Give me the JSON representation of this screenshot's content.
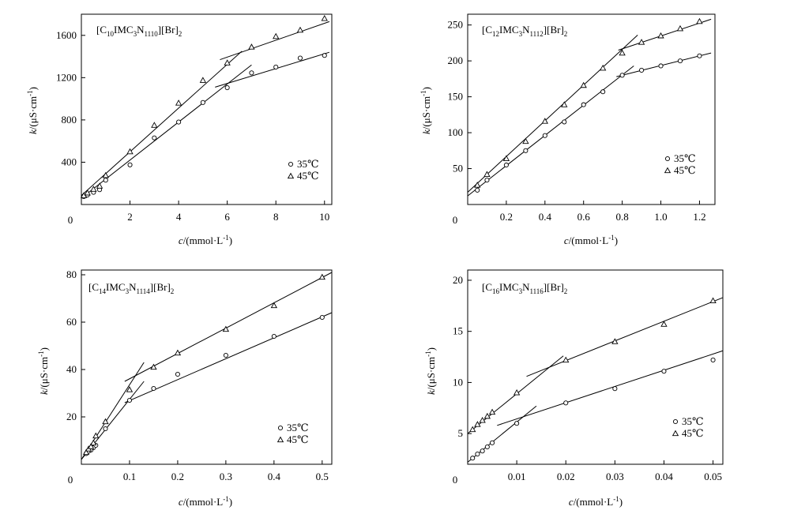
{
  "chart_data": [
    {
      "type": "scatter",
      "title_parts": [
        "[C",
        "10",
        "IMC",
        "3",
        "N",
        "1110",
        "][Br]",
        "2"
      ],
      "xlabel_parts": [
        "c",
        "/(mmol·L",
        "-1",
        ")"
      ],
      "ylabel_parts": [
        "k",
        "/(μS·cm",
        "-1",
        ")"
      ],
      "xlim": [
        0,
        10.3
      ],
      "ylim": [
        0,
        1800
      ],
      "xticks": [
        0,
        2,
        4,
        6,
        8,
        10
      ],
      "xtick_labels": [
        "0",
        "2",
        "4",
        "6",
        "8",
        "10"
      ],
      "yticks": [
        400,
        800,
        1200,
        1600
      ],
      "ytick_labels": [
        "400",
        "800",
        "1200",
        "1600"
      ],
      "legend_position": "bottom-right",
      "series": [
        {
          "name": "35℃",
          "marker": "circle",
          "x": [
            0.1,
            0.25,
            0.5,
            0.75,
            1.0,
            2.0,
            3.0,
            4.0,
            5.0,
            6.0,
            7.0,
            8.0,
            9.0,
            10.0
          ],
          "y": [
            75,
            90,
            115,
            140,
            230,
            375,
            630,
            780,
            965,
            1105,
            1245,
            1300,
            1385,
            1410
          ]
        },
        {
          "name": "45℃",
          "marker": "triangle",
          "x": [
            0.1,
            0.25,
            0.5,
            0.75,
            1.0,
            2.0,
            3.0,
            4.0,
            5.0,
            6.0,
            7.0,
            8.0,
            9.0,
            10.0
          ],
          "y": [
            85,
            110,
            145,
            175,
            275,
            500,
            750,
            960,
            1175,
            1340,
            1490,
            1590,
            1650,
            1760
          ]
        }
      ],
      "fit_lines": [
        {
          "series": "35℃",
          "from": [
            0,
            60
          ],
          "to": [
            7,
            1320
          ]
        },
        {
          "series": "35℃",
          "from": [
            5.5,
            1110
          ],
          "to": [
            10.2,
            1440
          ]
        },
        {
          "series": "45℃",
          "from": [
            0,
            85
          ],
          "to": [
            6.6,
            1450
          ]
        },
        {
          "series": "45℃",
          "from": [
            5.7,
            1370
          ],
          "to": [
            10.2,
            1730
          ]
        }
      ]
    },
    {
      "type": "scatter",
      "title_parts": [
        "[C",
        "12",
        "IMC",
        "3",
        "N",
        "1112",
        "][Br]",
        "2"
      ],
      "xlabel_parts": [
        "c",
        "/(mmol·L",
        "-1",
        ")"
      ],
      "ylabel_parts": [
        "k",
        "/(μS·cm",
        "-1",
        ")"
      ],
      "xlim": [
        0,
        1.28
      ],
      "ylim": [
        0,
        265
      ],
      "xticks": [
        0,
        0.2,
        0.4,
        0.6,
        0.8,
        1.0,
        1.2
      ],
      "xtick_labels": [
        "0",
        "0.2",
        "0.4",
        "0.6",
        "0.8",
        "1.0",
        "1.2"
      ],
      "yticks": [
        50,
        100,
        150,
        200,
        250
      ],
      "ytick_labels": [
        "50",
        "100",
        "150",
        "200",
        "250"
      ],
      "legend_position": "bottom-right",
      "series": [
        {
          "name": "35℃",
          "marker": "circle",
          "x": [
            0.05,
            0.1,
            0.2,
            0.3,
            0.4,
            0.5,
            0.6,
            0.7,
            0.8,
            0.9,
            1.0,
            1.1,
            1.2
          ],
          "y": [
            20,
            34,
            55,
            75,
            96,
            115,
            139,
            157,
            180,
            187,
            193,
            200,
            207
          ]
        },
        {
          "name": "45℃",
          "marker": "triangle",
          "x": [
            0.05,
            0.1,
            0.2,
            0.3,
            0.4,
            0.5,
            0.6,
            0.7,
            0.8,
            0.9,
            1.0,
            1.1,
            1.2
          ],
          "y": [
            27,
            42,
            64,
            88,
            116,
            139,
            166,
            190,
            211,
            226,
            235,
            245,
            255
          ]
        }
      ],
      "fit_lines": [
        {
          "series": "35℃",
          "from": [
            0,
            12
          ],
          "to": [
            0.86,
            193
          ]
        },
        {
          "series": "35℃",
          "from": [
            0.77,
            178
          ],
          "to": [
            1.26,
            211
          ]
        },
        {
          "series": "45℃",
          "from": [
            0,
            17
          ],
          "to": [
            0.88,
            236
          ]
        },
        {
          "series": "45℃",
          "from": [
            0.78,
            215
          ],
          "to": [
            1.26,
            258
          ]
        }
      ]
    },
    {
      "type": "scatter",
      "title_parts": [
        "[C",
        "14",
        "IMC",
        "3",
        "N",
        "1114",
        "][Br]",
        "2"
      ],
      "xlabel_parts": [
        "c",
        "/(mmol·L",
        "-1",
        ")"
      ],
      "ylabel_parts": [
        "k",
        "/(μS·cm",
        "-1",
        ")"
      ],
      "xlim": [
        0,
        0.52
      ],
      "ylim": [
        0,
        82
      ],
      "xticks": [
        0,
        0.1,
        0.2,
        0.3,
        0.4,
        0.5
      ],
      "xtick_labels": [
        "0",
        "0.1",
        "0.2",
        "0.3",
        "0.4",
        "0.5"
      ],
      "yticks": [
        20,
        40,
        60,
        80
      ],
      "ytick_labels": [
        "20",
        "40",
        "60",
        "80"
      ],
      "legend_position": "bottom-right",
      "series": [
        {
          "name": "35℃",
          "marker": "circle",
          "x": [
            0.01,
            0.015,
            0.02,
            0.025,
            0.03,
            0.05,
            0.1,
            0.15,
            0.2,
            0.3,
            0.4,
            0.5
          ],
          "y": [
            4.5,
            5.5,
            6,
            7,
            8,
            15,
            27,
            32,
            38,
            46,
            54,
            62
          ]
        },
        {
          "name": "45℃",
          "marker": "triangle",
          "x": [
            0.01,
            0.015,
            0.02,
            0.025,
            0.03,
            0.05,
            0.1,
            0.15,
            0.2,
            0.3,
            0.4,
            0.5
          ],
          "y": [
            5,
            6.5,
            7.5,
            9,
            12,
            18,
            31.5,
            41,
            47,
            57,
            67,
            79
          ]
        }
      ],
      "fit_lines": [
        {
          "series": "35℃",
          "from": [
            0,
            2
          ],
          "to": [
            0.13,
            35
          ]
        },
        {
          "series": "35℃",
          "from": [
            0.09,
            26
          ],
          "to": [
            0.52,
            64
          ]
        },
        {
          "series": "45℃",
          "from": [
            0,
            2
          ],
          "to": [
            0.13,
            43
          ]
        },
        {
          "series": "45℃",
          "from": [
            0.09,
            35
          ],
          "to": [
            0.52,
            81
          ]
        }
      ]
    },
    {
      "type": "scatter",
      "title_parts": [
        "[C",
        "16",
        "IMC",
        "3",
        "N",
        "1116",
        "][Br]",
        "2"
      ],
      "xlabel_parts": [
        "c",
        "/(mmol·L",
        "-1",
        ")"
      ],
      "ylabel_parts": [
        "k",
        "/(μS·cm",
        "-1",
        ")"
      ],
      "xlim": [
        0,
        0.052
      ],
      "ylim": [
        2,
        21
      ],
      "xticks": [
        0,
        0.01,
        0.02,
        0.03,
        0.04,
        0.05
      ],
      "xtick_labels": [
        "0",
        "0.01",
        "0.02",
        "0.03",
        "0.04",
        "0.05"
      ],
      "yticks": [
        5,
        10,
        15,
        20
      ],
      "ytick_labels": [
        "5",
        "10",
        "15",
        "20"
      ],
      "legend_position": "bottom-right",
      "series": [
        {
          "name": "35℃",
          "marker": "circle",
          "x": [
            0.001,
            0.002,
            0.003,
            0.004,
            0.005,
            0.01,
            0.02,
            0.03,
            0.04,
            0.05
          ],
          "y": [
            2.6,
            3.0,
            3.3,
            3.7,
            4.1,
            6.0,
            8.0,
            9.4,
            11.1,
            12.2
          ]
        },
        {
          "name": "45℃",
          "marker": "triangle",
          "x": [
            0.001,
            0.002,
            0.003,
            0.004,
            0.005,
            0.01,
            0.02,
            0.03,
            0.04,
            0.05
          ],
          "y": [
            5.4,
            5.9,
            6.3,
            6.7,
            7.1,
            9.0,
            12.2,
            14.0,
            15.7,
            18.0
          ]
        }
      ],
      "fit_lines": [
        {
          "series": "35℃",
          "from": [
            0,
            2.2
          ],
          "to": [
            0.014,
            7.7
          ]
        },
        {
          "series": "35℃",
          "from": [
            0.006,
            5.8
          ],
          "to": [
            0.052,
            13.1
          ]
        },
        {
          "series": "45℃",
          "from": [
            0,
            5.0
          ],
          "to": [
            0.0195,
            12.6
          ]
        },
        {
          "series": "45℃",
          "from": [
            0.012,
            10.6
          ],
          "to": [
            0.052,
            18.3
          ]
        }
      ]
    }
  ]
}
